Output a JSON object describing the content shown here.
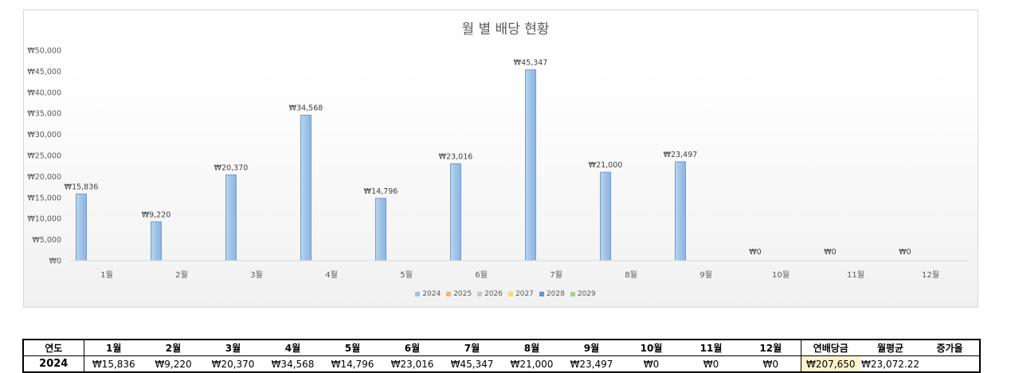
{
  "chart_data": {
    "type": "bar",
    "title": "월 별 배당 현황",
    "categories": [
      "1월",
      "2월",
      "3월",
      "4월",
      "5월",
      "6월",
      "7월",
      "8월",
      "9월",
      "10월",
      "11월",
      "12월"
    ],
    "series": [
      {
        "name": "2024",
        "values": [
          15836,
          9220,
          20370,
          34568,
          14796,
          23016,
          45347,
          21000,
          23497,
          0,
          0,
          0
        ],
        "labels": [
          "₩15,836",
          "₩9,220",
          "₩20,370",
          "₩34,568",
          "₩14,796",
          "₩23,016",
          "₩45,347",
          "₩21,000",
          "₩23,497",
          "₩0",
          "₩0",
          "₩0"
        ]
      }
    ],
    "ylim": [
      0,
      50000
    ],
    "yticks": [
      0,
      5000,
      10000,
      15000,
      20000,
      25000,
      30000,
      35000,
      40000,
      45000,
      50000
    ],
    "ytick_labels": [
      "₩0",
      "₩5,000",
      "₩10,000",
      "₩15,000",
      "₩20,000",
      "₩25,000",
      "₩30,000",
      "₩35,000",
      "₩40,000",
      "₩45,000",
      "₩50,000"
    ],
    "grid": false,
    "legend_position": "bottom",
    "legend": [
      {
        "name": "2024",
        "color": "#9dc3e6"
      },
      {
        "name": "2025",
        "color": "#f4b183"
      },
      {
        "name": "2026",
        "color": "#c9c9c9"
      },
      {
        "name": "2027",
        "color": "#ffd966"
      },
      {
        "name": "2028",
        "color": "#5b9bd5"
      },
      {
        "name": "2029",
        "color": "#a9d18e"
      }
    ]
  },
  "table": {
    "headers": [
      "연도",
      "1월",
      "2월",
      "3월",
      "4월",
      "5월",
      "6월",
      "7월",
      "8월",
      "9월",
      "10월",
      "11월",
      "12월",
      "연배당금",
      "월평균",
      "증가율"
    ],
    "row": {
      "year": "2024",
      "months": [
        "₩15,836",
        "₩9,220",
        "₩20,370",
        "₩34,568",
        "₩14,796",
        "₩23,016",
        "₩45,347",
        "₩21,000",
        "₩23,497",
        "₩0",
        "₩0",
        "₩0"
      ],
      "annual": "₩207,650",
      "average": "₩23,072.22",
      "growth": ""
    }
  }
}
